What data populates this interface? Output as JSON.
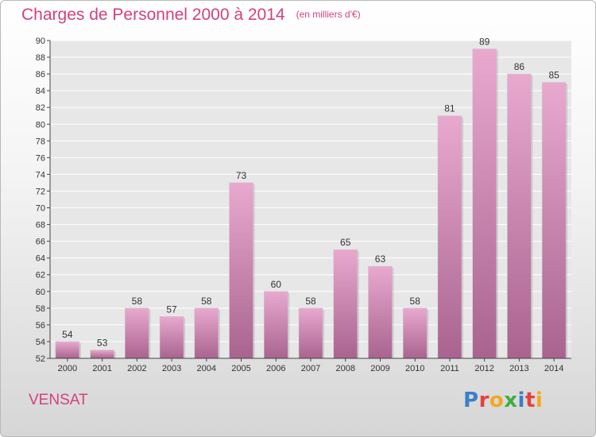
{
  "header": {
    "title": "Charges de Personnel 2000 à 2014",
    "subtitle": "(en milliers d'€)"
  },
  "footer": {
    "commune": "VENSAT",
    "logo_text": "Proxiti",
    "logo_colors": [
      "#3a7fc9",
      "#e8403b",
      "#f2a91d",
      "#3fae3f",
      "#3a7fc9",
      "#e8403b",
      "#f2a91d"
    ]
  },
  "colors": {
    "accent": "#d4407f",
    "bar_top": "#e9a9cf",
    "bar_bottom": "#a8648f",
    "axis": "#444444",
    "grid": "#ffffff"
  },
  "chart_data": {
    "type": "bar",
    "title": "Charges de Personnel 2000 à 2014",
    "subtitle": "(en milliers d'€)",
    "categories": [
      "2000",
      "2001",
      "2002",
      "2003",
      "2004",
      "2005",
      "2006",
      "2007",
      "2008",
      "2009",
      "2010",
      "2011",
      "2012",
      "2013",
      "2014"
    ],
    "values": [
      54,
      53,
      58,
      57,
      58,
      73,
      60,
      58,
      65,
      63,
      58,
      81,
      89,
      86,
      85
    ],
    "ylim": [
      52,
      90
    ],
    "ytick_step": 2,
    "yticks": [
      "52",
      "54",
      "56",
      "58",
      "60",
      "62",
      "64",
      "66",
      "68",
      "70",
      "72",
      "74",
      "76",
      "78",
      "80",
      "82",
      "84",
      "86",
      "88",
      "90"
    ],
    "grid": true,
    "xlabel": "",
    "ylabel": ""
  }
}
